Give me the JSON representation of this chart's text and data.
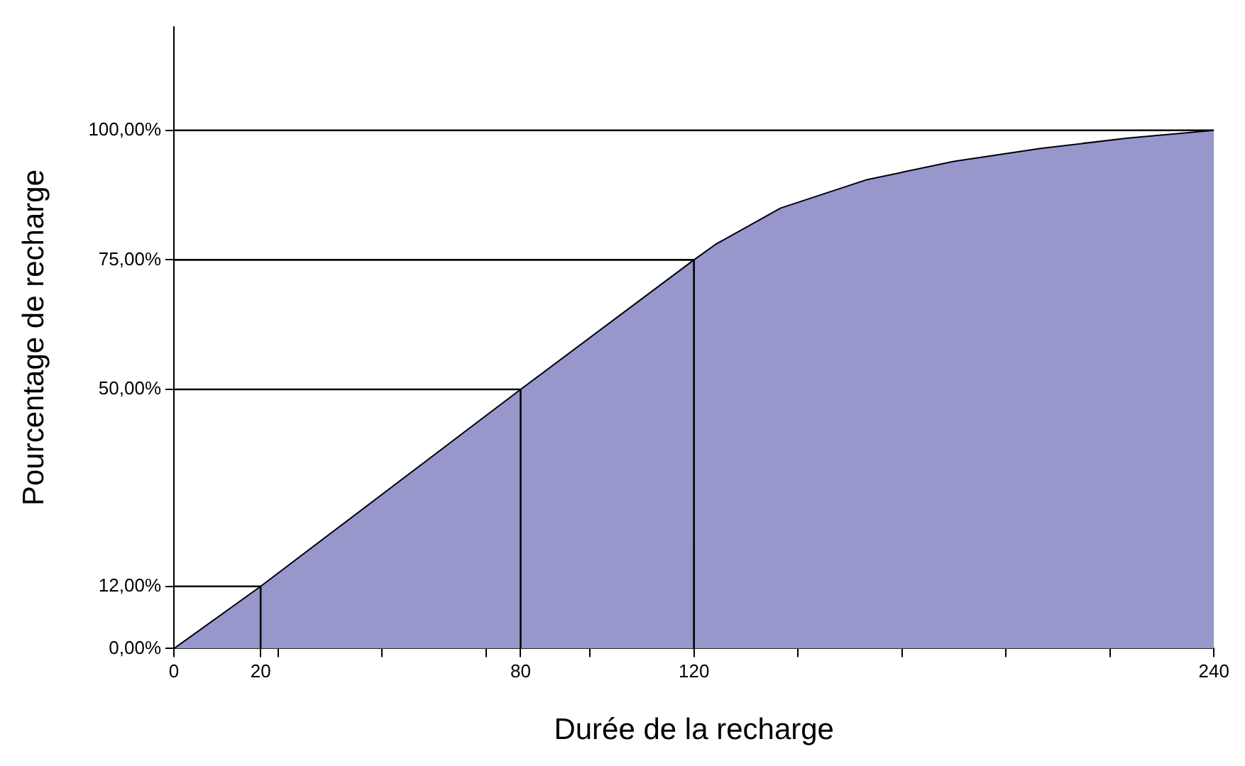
{
  "chart_data": {
    "type": "area",
    "xlabel": "Durée de la recharge",
    "ylabel": "Pourcentage de recharge",
    "xlim": [
      0,
      240
    ],
    "ylim": [
      0,
      120
    ],
    "xticks": [
      0,
      20,
      {
        "value": 24,
        "label": null
      },
      {
        "value": 48,
        "label": null
      },
      {
        "value": 72,
        "label": null
      },
      80,
      {
        "value": 96,
        "label": null
      },
      120,
      {
        "value": 144,
        "label": null
      },
      {
        "value": 168,
        "label": null
      },
      {
        "value": 192,
        "label": null
      },
      {
        "value": 216,
        "label": null
      },
      240
    ],
    "yticks": [
      {
        "value": 0,
        "label": "0,00%"
      },
      {
        "value": 12,
        "label": "12,00%"
      },
      {
        "value": 50,
        "label": "50,00%"
      },
      {
        "value": 75,
        "label": "75,00%"
      },
      {
        "value": 100,
        "label": "100,00%"
      }
    ],
    "grid": false,
    "legend": false,
    "series": [
      {
        "color": "#9797cb",
        "x": [
          0,
          20,
          80,
          120,
          125,
          140,
          160,
          180,
          200,
          220,
          240
        ],
        "values": [
          0,
          12,
          50,
          75,
          78,
          85,
          90.5,
          94,
          96.5,
          98.5,
          100
        ]
      },
      {
        "type": "line",
        "color": "#000000",
        "x": [
          0,
          20,
          20
        ],
        "values": [
          12,
          12,
          0
        ]
      },
      {
        "type": "line",
        "color": "#000000",
        "x": [
          0,
          80,
          80
        ],
        "values": [
          50,
          50,
          0
        ]
      },
      {
        "type": "line",
        "color": "#000000",
        "x": [
          0,
          120,
          120
        ],
        "values": [
          75,
          75,
          0
        ]
      },
      {
        "type": "line",
        "color": "#000000",
        "x": [
          0,
          240
        ],
        "values": [
          100,
          100
        ]
      }
    ]
  }
}
